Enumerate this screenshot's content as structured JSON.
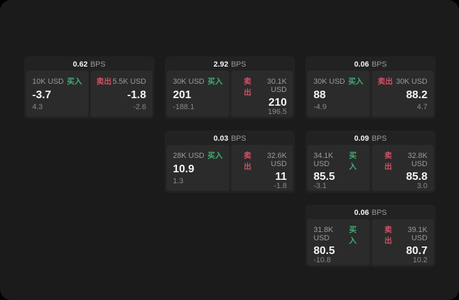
{
  "labels": {
    "bps_unit": "BPS",
    "buy": "买入",
    "sell": "卖出"
  },
  "colors": {
    "page_background": "#1b1b1b",
    "outer_background": "#000000",
    "card_background": "#222222",
    "panel_background": "#2b2b2b",
    "buy_green": "#43ad72",
    "sell_red": "#cf5065",
    "text_primary": "#f5f5f5",
    "text_secondary": "#9b9b9b"
  },
  "cards": [
    {
      "bps": "0.62",
      "buy": {
        "amount": "10K USD",
        "value": "-3.7",
        "sub": "4.3"
      },
      "sell": {
        "amount": "5.5K USD",
        "value": "-1.8",
        "sub": "-2.6"
      }
    },
    {
      "bps": "2.92",
      "buy": {
        "amount": "30K USD",
        "value": "201",
        "sub": "-188.1"
      },
      "sell": {
        "amount": "30.1K USD",
        "value": "210",
        "sub": "196.5"
      }
    },
    {
      "bps": "0.06",
      "buy": {
        "amount": "30K USD",
        "value": "88",
        "sub": "-4.9"
      },
      "sell": {
        "amount": "30K USD",
        "value": "88.2",
        "sub": "4.7"
      }
    },
    {
      "bps": "0.03",
      "buy": {
        "amount": "28K USD",
        "value": "10.9",
        "sub": "1.3"
      },
      "sell": {
        "amount": "32.6K USD",
        "value": "11",
        "sub": "-1.8"
      }
    },
    {
      "bps": "0.09",
      "buy": {
        "amount": "34.1K USD",
        "value": "85.5",
        "sub": "-3.1"
      },
      "sell": {
        "amount": "32.8K USD",
        "value": "85.8",
        "sub": "3.0"
      }
    },
    {
      "bps": "0.06",
      "buy": {
        "amount": "31.8K USD",
        "value": "80.5",
        "sub": "-10.8"
      },
      "sell": {
        "amount": "39.1K USD",
        "value": "80.7",
        "sub": "10.2"
      }
    }
  ]
}
